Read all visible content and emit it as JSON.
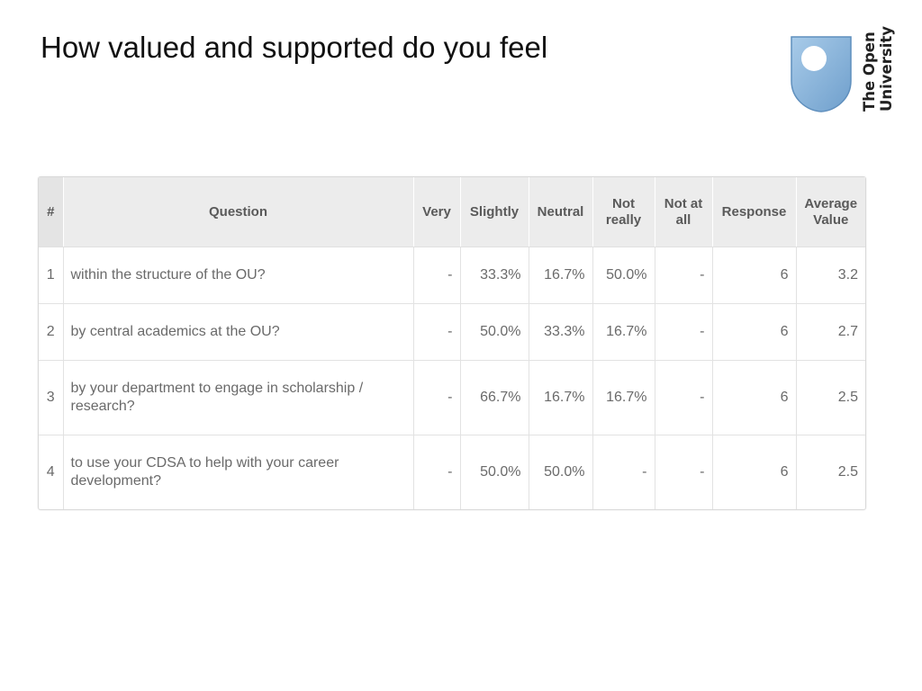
{
  "slide": {
    "title": "How valued and supported do you feel"
  },
  "logo": {
    "line1": "The Open",
    "line2": "University",
    "shield_color": "#8fb8dd",
    "shield_inner": "#ffffff"
  },
  "table": {
    "headers": {
      "num": "#",
      "question": "Question",
      "very": "Very",
      "slightly": "Slightly",
      "neutral": "Neutral",
      "not_really_1": "Not",
      "not_really_2": "really",
      "not_at_all_1": "Not at",
      "not_at_all_2": "all",
      "response": "Response",
      "average_1": "Average",
      "average_2": "Value"
    },
    "rows": [
      {
        "num": "1",
        "question": "within the structure of the OU?",
        "very": "-",
        "slightly": "33.3%",
        "neutral": "16.7%",
        "not_really": "50.0%",
        "not_at_all": "-",
        "response": "6",
        "average": "3.2"
      },
      {
        "num": "2",
        "question": "by central academics at the OU?",
        "very": "-",
        "slightly": "50.0%",
        "neutral": "33.3%",
        "not_really": "16.7%",
        "not_at_all": "-",
        "response": "6",
        "average": "2.7"
      },
      {
        "num": "3",
        "question": "by your department to engage in scholarship / research?",
        "very": "-",
        "slightly": "66.7%",
        "neutral": "16.7%",
        "not_really": "16.7%",
        "not_at_all": "-",
        "response": "6",
        "average": "2.5"
      },
      {
        "num": "4",
        "question": "to use your CDSA to help with your career development?",
        "very": "-",
        "slightly": "50.0%",
        "neutral": "50.0%",
        "not_really": "-",
        "not_at_all": "-",
        "response": "6",
        "average": "2.5"
      }
    ]
  }
}
